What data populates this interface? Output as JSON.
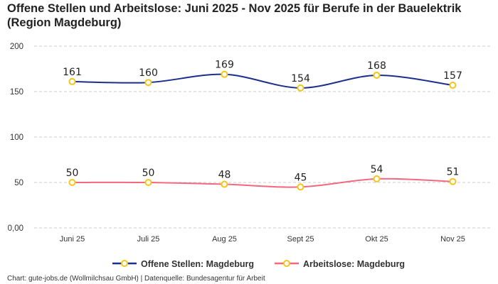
{
  "chart_data": {
    "type": "line",
    "title": "Offene Stellen und Arbeitslose: Juni 2025 - Nov 2025 für Berufe in der Bauelektrik (Region Magdeburg)",
    "categories": [
      "Juni 25",
      "Juli 25",
      "Aug 25",
      "Sept 25",
      "Okt 25",
      "Nov 25"
    ],
    "ylim": [
      0,
      200
    ],
    "yticks": [
      0,
      50,
      100,
      150,
      200
    ],
    "ytick_labels": [
      "0,00",
      "50",
      "100",
      "150",
      "200"
    ],
    "grid": true,
    "legend_placement": "bottom",
    "series": [
      {
        "name": "Offene Stellen: Magdeburg",
        "values": [
          161,
          160,
          169,
          154,
          168,
          157
        ],
        "color": "#1b2f8c"
      },
      {
        "name": "Arbeitslose: Magdeburg",
        "values": [
          50,
          50,
          48,
          45,
          54,
          51
        ],
        "color": "#f4687f"
      }
    ],
    "marker_color": "#f5c518"
  },
  "credit": "Chart: gute-jobs.de (Wollmilchsau GmbH) | Datenquelle: Bundesagentur für Arbeit"
}
